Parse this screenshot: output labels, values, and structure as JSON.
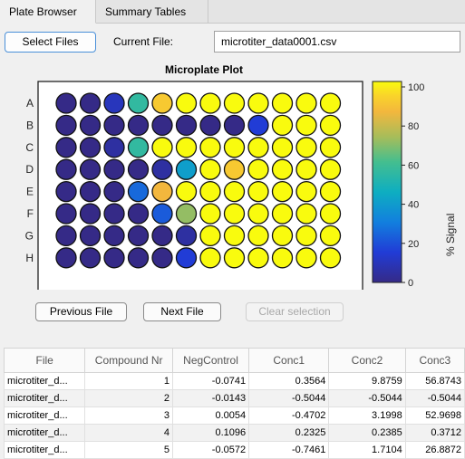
{
  "tabs": [
    {
      "label": "Plate Browser",
      "active": true
    },
    {
      "label": "Summary Tables",
      "active": false
    }
  ],
  "toolbar": {
    "select_files_label": "Select Files",
    "current_file_label": "Current File:",
    "current_file_value": "microtiter_data0001.csv"
  },
  "plot": {
    "title": "Microplate Plot",
    "row_labels": [
      "A",
      "B",
      "C",
      "D",
      "E",
      "F",
      "G",
      "H"
    ],
    "wells": [
      [
        0,
        0,
        10,
        55,
        90,
        100,
        100,
        100,
        100,
        100,
        100,
        100
      ],
      [
        0,
        0,
        0,
        0,
        0,
        0,
        0,
        0,
        15,
        100,
        100,
        100
      ],
      [
        0,
        0,
        5,
        55,
        100,
        100,
        100,
        100,
        100,
        100,
        100,
        100
      ],
      [
        0,
        0,
        0,
        0,
        5,
        40,
        100,
        90,
        100,
        100,
        100,
        100
      ],
      [
        0,
        0,
        0,
        25,
        85,
        100,
        100,
        100,
        100,
        100,
        100,
        100
      ],
      [
        0,
        0,
        0,
        0,
        22,
        70,
        100,
        100,
        100,
        100,
        100,
        100
      ],
      [
        0,
        0,
        0,
        0,
        0,
        5,
        100,
        100,
        100,
        100,
        100,
        100
      ],
      [
        0,
        0,
        0,
        0,
        0,
        15,
        100,
        100,
        100,
        100,
        100,
        100
      ]
    ],
    "colorbar": {
      "label": "% Signal",
      "ticks": [
        "100",
        "80",
        "60",
        "40",
        "20",
        "0"
      ]
    }
  },
  "buttons": {
    "previous_label": "Previous File",
    "next_label": "Next File",
    "clear_label": "Clear selection"
  },
  "table": {
    "headers": [
      "File",
      "Compound Nr",
      "NegControl",
      "Conc1",
      "Conc2",
      "Conc3"
    ],
    "rows": [
      [
        "microtiter_d...",
        "1",
        "-0.0741",
        "0.3564",
        "9.8759",
        "56.8743"
      ],
      [
        "microtiter_d...",
        "2",
        "-0.0143",
        "-0.5044",
        "-0.5044",
        "-0.5044"
      ],
      [
        "microtiter_d...",
        "3",
        "0.0054",
        "-0.4702",
        "3.1998",
        "52.9698"
      ],
      [
        "microtiter_d...",
        "4",
        "0.1096",
        "0.2325",
        "0.2385",
        "0.3712"
      ],
      [
        "microtiter_d...",
        "5",
        "-0.0572",
        "-0.7461",
        "1.7104",
        "26.8872"
      ]
    ]
  }
}
